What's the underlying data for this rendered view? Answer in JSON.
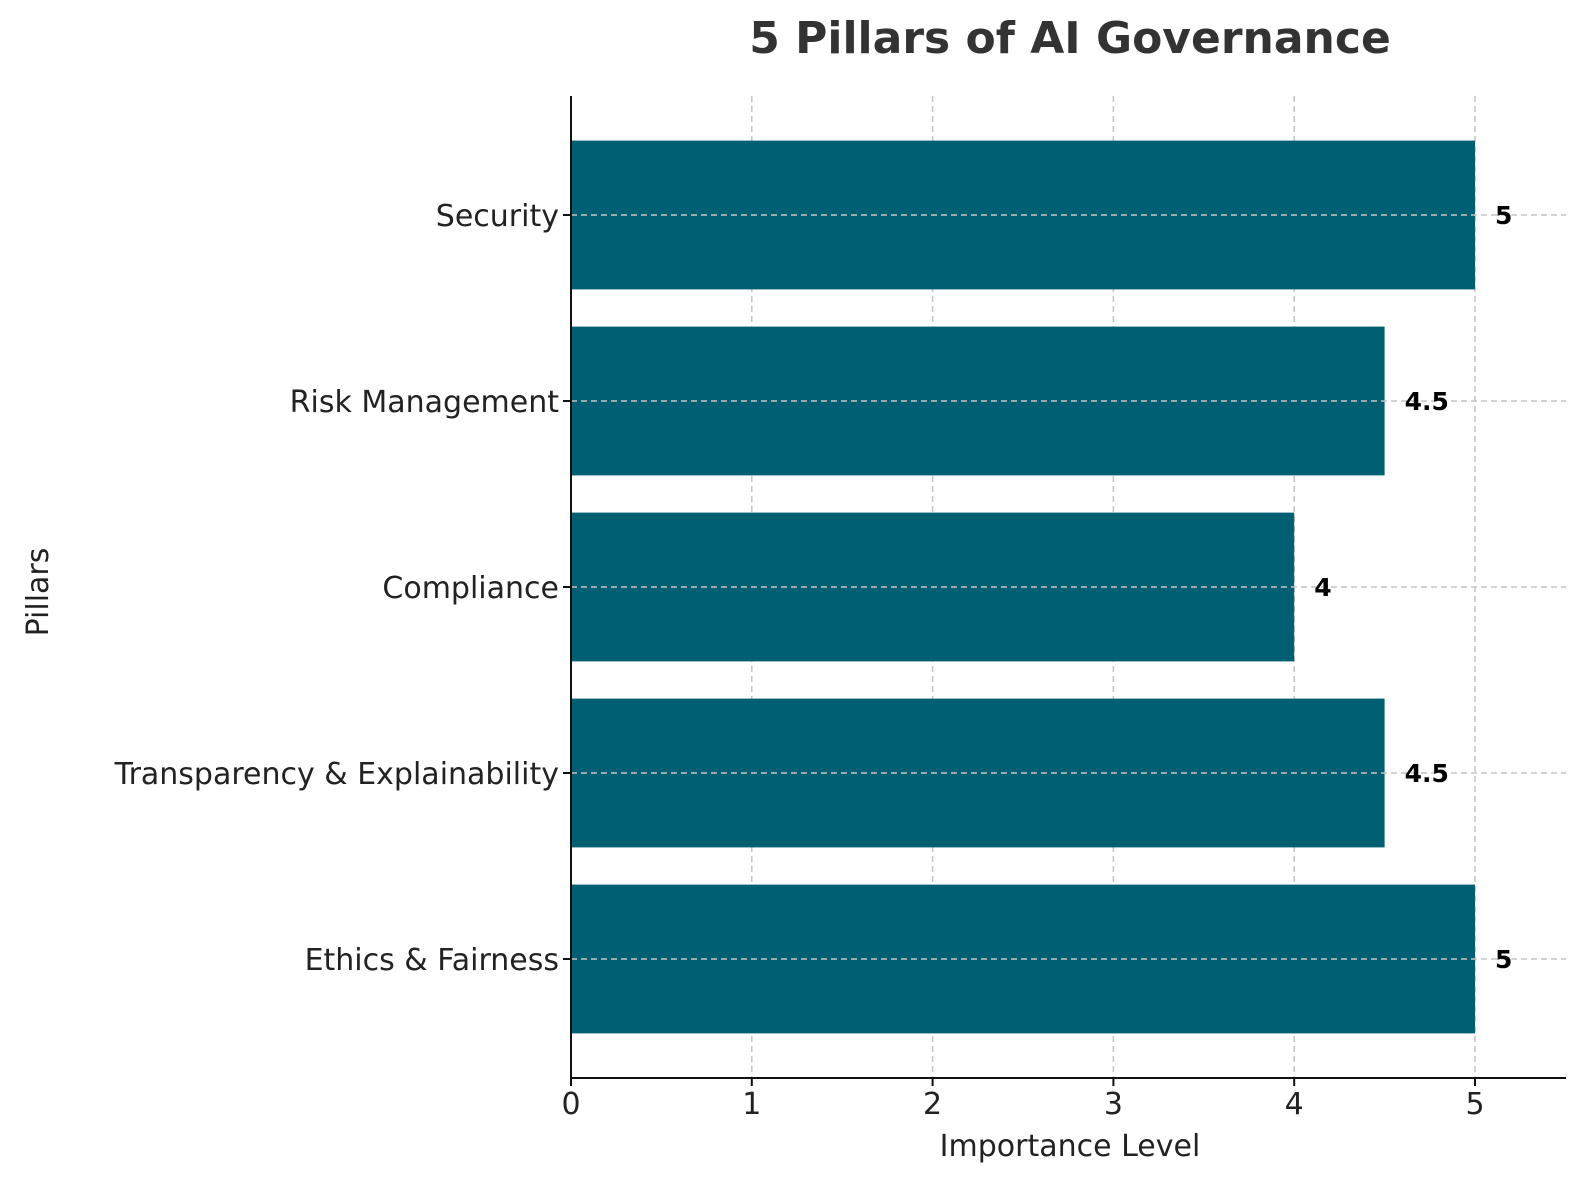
{
  "chart_data": {
    "type": "bar",
    "orientation": "horizontal",
    "title": "5 Pillars of AI Governance",
    "xlabel": "Importance Level",
    "ylabel": "Pillars",
    "categories": [
      "Ethics & Fairness",
      "Transparency & Explainability",
      "Compliance",
      "Risk Management",
      "Security"
    ],
    "values": [
      5,
      4.5,
      4,
      4.5,
      5
    ],
    "data_labels": [
      "5",
      "4.5",
      "4",
      "4.5",
      "5"
    ],
    "xlim": [
      0,
      5.5
    ],
    "xticks": [
      0,
      1,
      2,
      3,
      4,
      5
    ],
    "grid": true,
    "bar_color": "#005f73"
  }
}
